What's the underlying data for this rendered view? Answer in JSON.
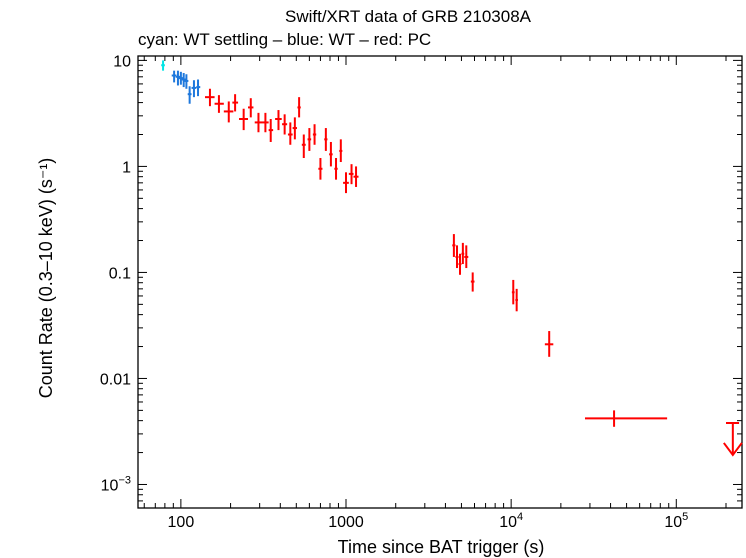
{
  "chart_data": {
    "type": "scatter",
    "title": "Swift/XRT data of GRB 210308A",
    "subtitle": "cyan: WT settling – blue: WT – red: PC",
    "xlabel": "Time since BAT trigger (s)",
    "ylabel": "Count Rate (0.3–10 keV) (s⁻¹)",
    "xscale": "log",
    "yscale": "log",
    "xlim": [
      55,
      250000
    ],
    "ylim": [
      0.0006,
      11
    ],
    "x_ticks": [
      {
        "value": 100,
        "label": "100"
      },
      {
        "value": 1000,
        "label": "1000"
      },
      {
        "value": 10000,
        "label": "10",
        "exp": "4"
      },
      {
        "value": 100000,
        "label": "10",
        "exp": "5"
      }
    ],
    "y_ticks": [
      {
        "value": 10,
        "label": "10"
      },
      {
        "value": 1,
        "label": "1"
      },
      {
        "value": 0.1,
        "label": "0.1"
      },
      {
        "value": 0.01,
        "label": "0.01"
      },
      {
        "value": 0.001,
        "label": "10",
        "exp": "−3"
      }
    ],
    "grid": false,
    "series": [
      {
        "color": "#00e5e5",
        "points": [
          {
            "x": 78,
            "xlo": 76,
            "xhi": 80,
            "y": 9.0,
            "ylo": 8.0,
            "yhi": 10.0
          }
        ]
      },
      {
        "color": "#1e78dc",
        "points": [
          {
            "x": 91,
            "xlo": 88,
            "xhi": 94,
            "y": 7.2,
            "ylo": 6.2,
            "yhi": 8.0
          },
          {
            "x": 96,
            "xlo": 93,
            "xhi": 99,
            "y": 7.0,
            "ylo": 5.8,
            "yhi": 8.0
          },
          {
            "x": 100,
            "xlo": 97,
            "xhi": 103,
            "y": 6.8,
            "ylo": 5.9,
            "yhi": 7.8
          },
          {
            "x": 104,
            "xlo": 101,
            "xhi": 107,
            "y": 6.6,
            "ylo": 5.6,
            "yhi": 7.6
          },
          {
            "x": 108,
            "xlo": 105,
            "xhi": 111,
            "y": 6.4,
            "ylo": 5.4,
            "yhi": 7.4
          },
          {
            "x": 113,
            "xlo": 110,
            "xhi": 116,
            "y": 4.8,
            "ylo": 3.9,
            "yhi": 5.7
          },
          {
            "x": 120,
            "xlo": 116,
            "xhi": 124,
            "y": 5.5,
            "ylo": 4.5,
            "yhi": 6.5
          },
          {
            "x": 127,
            "xlo": 124,
            "xhi": 131,
            "y": 5.6,
            "ylo": 4.6,
            "yhi": 6.6
          }
        ]
      },
      {
        "color": "#ff0000",
        "points": [
          {
            "x": 150,
            "xlo": 140,
            "xhi": 160,
            "y": 4.5,
            "ylo": 3.7,
            "yhi": 5.4
          },
          {
            "x": 170,
            "xlo": 160,
            "xhi": 182,
            "y": 3.9,
            "ylo": 3.2,
            "yhi": 4.7
          },
          {
            "x": 195,
            "xlo": 182,
            "xhi": 208,
            "y": 3.3,
            "ylo": 2.6,
            "yhi": 4.1
          },
          {
            "x": 213,
            "xlo": 205,
            "xhi": 222,
            "y": 4.0,
            "ylo": 3.3,
            "yhi": 4.8
          },
          {
            "x": 240,
            "xlo": 225,
            "xhi": 255,
            "y": 2.8,
            "ylo": 2.2,
            "yhi": 3.5
          },
          {
            "x": 265,
            "xlo": 255,
            "xhi": 275,
            "y": 3.6,
            "ylo": 2.9,
            "yhi": 4.4
          },
          {
            "x": 295,
            "xlo": 280,
            "xhi": 310,
            "y": 2.6,
            "ylo": 2.1,
            "yhi": 3.2
          },
          {
            "x": 325,
            "xlo": 310,
            "xhi": 340,
            "y": 2.6,
            "ylo": 2.1,
            "yhi": 3.2
          },
          {
            "x": 350,
            "xlo": 340,
            "xhi": 362,
            "y": 2.2,
            "ylo": 1.7,
            "yhi": 2.8
          },
          {
            "x": 390,
            "xlo": 372,
            "xhi": 408,
            "y": 2.8,
            "ylo": 2.2,
            "yhi": 3.4
          },
          {
            "x": 425,
            "xlo": 410,
            "xhi": 440,
            "y": 2.5,
            "ylo": 2.0,
            "yhi": 3.1
          },
          {
            "x": 460,
            "xlo": 445,
            "xhi": 475,
            "y": 2.0,
            "ylo": 1.6,
            "yhi": 2.6
          },
          {
            "x": 490,
            "xlo": 475,
            "xhi": 505,
            "y": 2.3,
            "ylo": 1.8,
            "yhi": 2.9
          },
          {
            "x": 520,
            "xlo": 508,
            "xhi": 532,
            "y": 3.6,
            "ylo": 2.9,
            "yhi": 4.5
          },
          {
            "x": 555,
            "xlo": 540,
            "xhi": 570,
            "y": 1.6,
            "ylo": 1.2,
            "yhi": 2.0
          },
          {
            "x": 600,
            "xlo": 585,
            "xhi": 615,
            "y": 1.8,
            "ylo": 1.4,
            "yhi": 2.3
          },
          {
            "x": 645,
            "xlo": 630,
            "xhi": 660,
            "y": 2.0,
            "ylo": 1.6,
            "yhi": 2.5
          },
          {
            "x": 700,
            "xlo": 680,
            "xhi": 720,
            "y": 0.95,
            "ylo": 0.75,
            "yhi": 1.2
          },
          {
            "x": 755,
            "xlo": 738,
            "xhi": 772,
            "y": 1.8,
            "ylo": 1.4,
            "yhi": 2.3
          },
          {
            "x": 810,
            "xlo": 790,
            "xhi": 830,
            "y": 1.3,
            "ylo": 1.0,
            "yhi": 1.7
          },
          {
            "x": 870,
            "xlo": 850,
            "xhi": 890,
            "y": 0.95,
            "ylo": 0.75,
            "yhi": 1.2
          },
          {
            "x": 930,
            "xlo": 910,
            "xhi": 950,
            "y": 1.4,
            "ylo": 1.1,
            "yhi": 1.8
          },
          {
            "x": 1000,
            "xlo": 960,
            "xhi": 1040,
            "y": 0.7,
            "ylo": 0.56,
            "yhi": 0.88
          },
          {
            "x": 1080,
            "xlo": 1040,
            "xhi": 1110,
            "y": 0.85,
            "ylo": 0.68,
            "yhi": 1.05
          },
          {
            "x": 1150,
            "xlo": 1110,
            "xhi": 1190,
            "y": 0.8,
            "ylo": 0.64,
            "yhi": 1.0
          },
          {
            "x": 4500,
            "xlo": 4400,
            "xhi": 4600,
            "y": 0.18,
            "ylo": 0.14,
            "yhi": 0.23
          },
          {
            "x": 4700,
            "xlo": 4600,
            "xhi": 4800,
            "y": 0.14,
            "ylo": 0.11,
            "yhi": 0.18
          },
          {
            "x": 4900,
            "xlo": 4800,
            "xhi": 5000,
            "y": 0.12,
            "ylo": 0.095,
            "yhi": 0.15
          },
          {
            "x": 5100,
            "xlo": 5000,
            "xhi": 5200,
            "y": 0.15,
            "ylo": 0.12,
            "yhi": 0.19
          },
          {
            "x": 5350,
            "xlo": 5200,
            "xhi": 5500,
            "y": 0.14,
            "ylo": 0.11,
            "yhi": 0.18
          },
          {
            "x": 5850,
            "xlo": 5700,
            "xhi": 6000,
            "y": 0.082,
            "ylo": 0.066,
            "yhi": 0.1
          },
          {
            "x": 10300,
            "xlo": 10100,
            "xhi": 10500,
            "y": 0.065,
            "ylo": 0.05,
            "yhi": 0.085
          },
          {
            "x": 10800,
            "xlo": 10600,
            "xhi": 11000,
            "y": 0.055,
            "ylo": 0.043,
            "yhi": 0.07
          },
          {
            "x": 17000,
            "xlo": 16000,
            "xhi": 18000,
            "y": 0.021,
            "ylo": 0.016,
            "yhi": 0.028
          },
          {
            "x": 42000,
            "xlo": 28000,
            "xhi": 88000,
            "y": 0.0042,
            "ylo": 0.0035,
            "yhi": 0.005
          }
        ]
      }
    ],
    "upper_limits": [
      {
        "color": "#ff0000",
        "x": 220000,
        "xlo": 200000,
        "xhi": 240000,
        "y": 0.0038,
        "arrow_to": 0.0019
      }
    ]
  }
}
